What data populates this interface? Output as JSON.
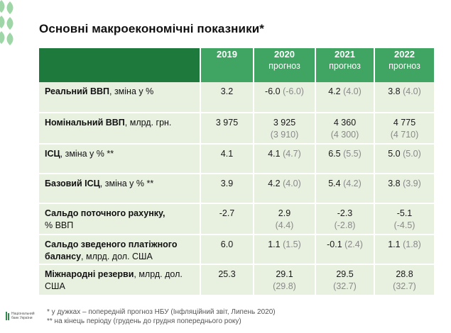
{
  "title": "Основні макроекономічні показники*",
  "header": {
    "years": [
      {
        "year": "2019",
        "note": ""
      },
      {
        "year": "2020",
        "note": "прогноз"
      },
      {
        "year": "2021",
        "note": "прогноз"
      },
      {
        "year": "2022",
        "note": "прогноз"
      }
    ]
  },
  "rows": [
    {
      "label_bold": "Реальний ВВП",
      "label_rest": ", зміна у %",
      "v2019": "3.2",
      "y2020": "-6.0",
      "p2020": "(-6.0)",
      "y2021": "4.2",
      "p2021": "(4.0)",
      "y2022": "3.8",
      "p2022": "(4.0)"
    },
    {
      "label_bold": "Номінальний ВВП",
      "label_rest": ", млрд. грн.",
      "v2019": "3 975",
      "y2020": "3 925",
      "p2020": "(3 910)",
      "y2021": "4 360",
      "p2021": "(4 300)",
      "y2022": "4 775",
      "p2022": "(4 710)"
    },
    {
      "label_bold": "ІСЦ",
      "label_rest": ", зміна у % **",
      "v2019": "4.1",
      "y2020": "4.1",
      "p2020": "(4.7)",
      "y2021": "6.5",
      "p2021": "(5.5)",
      "y2022": "5.0",
      "p2022": "(5.0)"
    },
    {
      "label_bold": "Базовий ІСЦ",
      "label_rest": ", зміна у % **",
      "v2019": "3.9",
      "y2020": "4.2",
      "p2020": "(4.0)",
      "y2021": "5.4",
      "p2021": "(4.2)",
      "y2022": "3.8",
      "p2022": "(3.9)"
    },
    {
      "label_bold": "Сальдо поточного рахунку,",
      "label_rest": "% ВВП",
      "v2019": "-2.7",
      "y2020": "2.9",
      "p2020": "(4.4)",
      "y2021": "-2.3",
      "p2021": "(-2.8)",
      "y2022": "-5.1",
      "p2022": "(-4.5)"
    },
    {
      "label_bold": "Сальдо зведеного платіжного балансу",
      "label_rest": ", млрд. дол. США",
      "v2019": "6.0",
      "y2020": "1.1",
      "p2020": "(1.5)",
      "y2021": "-0.1",
      "p2021": "(2.4)",
      "y2022": "1.1",
      "p2022": "(1.8)"
    },
    {
      "label_bold": "Міжнародні резерви",
      "label_rest": ", млрд. дол. США",
      "v2019": "25.3",
      "y2020": "29.1",
      "p2020": "(29.8)",
      "y2021": "29.5",
      "p2021": "(32.7)",
      "y2022": "28.8",
      "p2022": "(32.7)"
    }
  ],
  "footnotes": [
    "* у дужках – попередній прогноз НБУ (Інфляційний звіт, Липень 2020)",
    "** на кінець періоду (грудень до грудня попереднього року)"
  ],
  "logo": {
    "line1": "Національний",
    "line2": "банк України"
  },
  "colors": {
    "header": "#40a563",
    "header_first": "#1e7a3c",
    "row_bg": "#e8f0e0",
    "prev_forecast": "#8a8a8a"
  }
}
